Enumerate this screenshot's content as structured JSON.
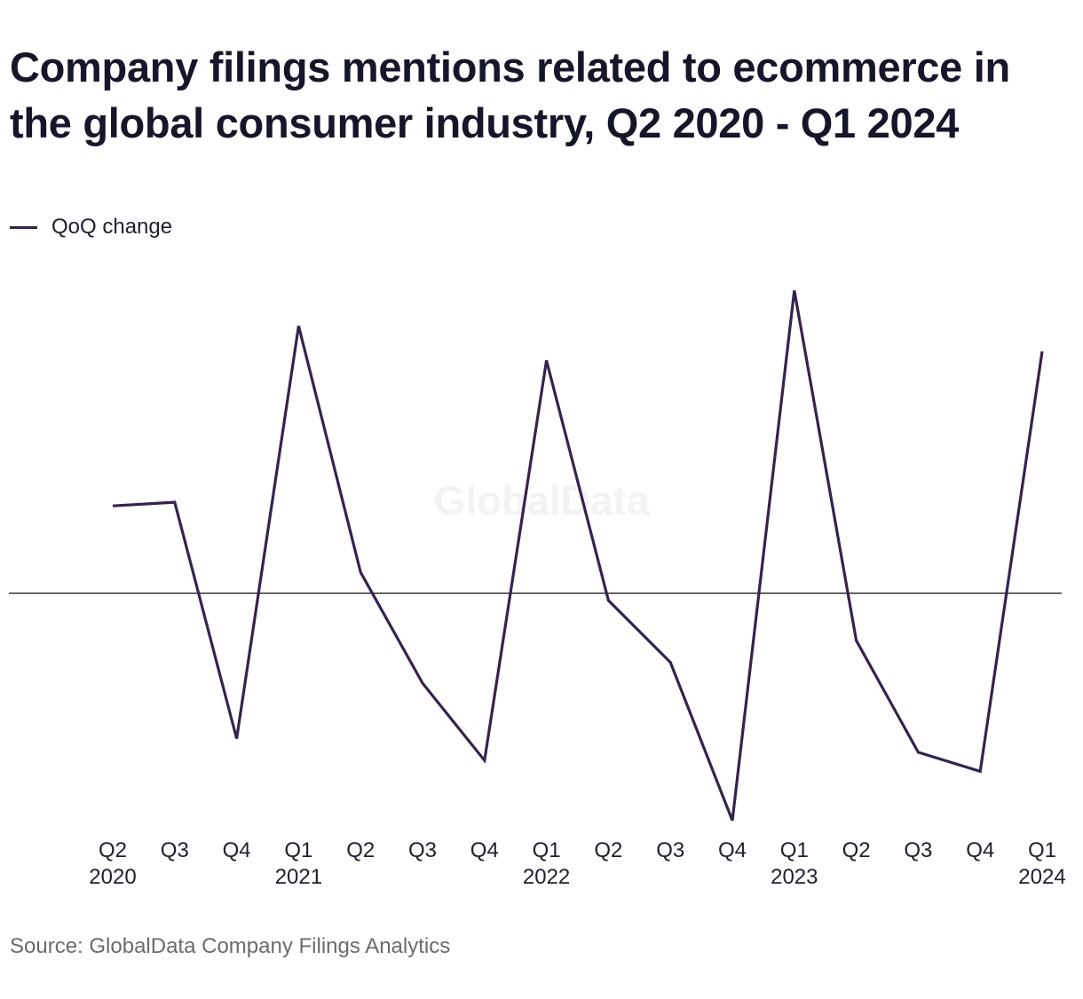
{
  "title": "Company filings mentions related to ecommerce in the global consumer industry, Q2 2020 - Q1 2024",
  "legend_label": "QoQ change",
  "watermark": "GlobalData",
  "source": "Source: GlobalData Company Filings Analytics",
  "colors": {
    "series": "#34234f",
    "zero_line": "#1a1a1a",
    "tick_text": "#1f1f2e",
    "watermark": "#f3f3f3"
  },
  "chart_data": {
    "type": "line",
    "title": "Company filings mentions related to ecommerce in the global consumer industry, Q2 2020 - Q1 2024",
    "xlabel": "",
    "ylabel": "",
    "grid": false,
    "legend_placement": "top-left",
    "zero_line": true,
    "categories": [
      [
        "Q2",
        "2020"
      ],
      [
        "Q3",
        ""
      ],
      [
        "Q4",
        ""
      ],
      [
        "Q1",
        "2021"
      ],
      [
        "Q2",
        ""
      ],
      [
        "Q3",
        ""
      ],
      [
        "Q4",
        ""
      ],
      [
        "Q1",
        "2022"
      ],
      [
        "Q2",
        ""
      ],
      [
        "Q3",
        ""
      ],
      [
        "Q4",
        ""
      ],
      [
        "Q1",
        "2023"
      ],
      [
        "Q2",
        ""
      ],
      [
        "Q3",
        ""
      ],
      [
        "Q4",
        ""
      ],
      [
        "Q1",
        "2024"
      ]
    ],
    "ylim": [
      -26,
      35
    ],
    "series": [
      {
        "name": "QoQ change",
        "values": [
          9.6,
          10.0,
          -16,
          29.4,
          2.3,
          -9.9,
          -18.4,
          25.6,
          -0.8,
          -7.6,
          -25.0,
          33.3,
          -5.2,
          -17.5,
          -19.6,
          26.6
        ]
      }
    ]
  }
}
